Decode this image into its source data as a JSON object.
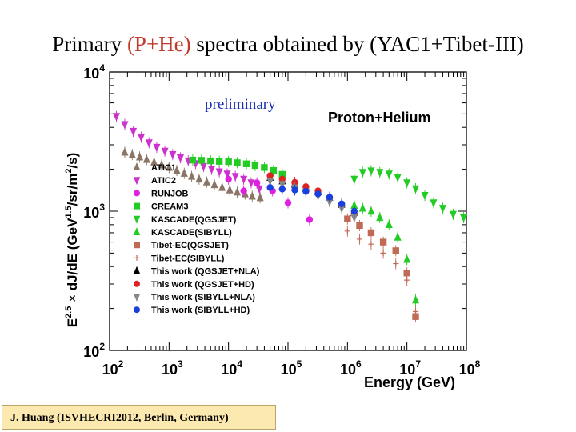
{
  "slide": {
    "title_prefix": "Primary ",
    "title_highlight": "(P+He)",
    "title_suffix": " spectra obtained by (YAC1+Tibet-III)",
    "citation": "J. Huang (ISVHECRI2012, Berlin, Germany)"
  },
  "colors": {
    "title_highlight": "#c0392b",
    "citation_bg": "#fbe9b0",
    "preliminary": "#1a2fb0"
  },
  "chart_data": {
    "type": "scatter",
    "scale": "log-log",
    "title": "Proton+Helium",
    "annotation": "preliminary",
    "xlabel": "Energy (GeV)",
    "ylabel": "E^2.5 × dJ/dE (GeV^1.5/sr/m^2/s)",
    "ylabel_parts": {
      "base": "E",
      "exp": "2.5",
      "times": " × ",
      "mid": " dJ/dE  (GeV",
      "exp2": "1.5",
      "mid2": "/sr/m",
      "exp3": "2",
      "end": "/s)"
    },
    "xlim": [
      100,
      100000000
    ],
    "ylim": [
      100,
      10000
    ],
    "x_ticks": [
      {
        "base": "10",
        "exp": "2",
        "value": 100
      },
      {
        "base": "10",
        "exp": "3",
        "value": 1000
      },
      {
        "base": "10",
        "exp": "4",
        "value": 10000
      },
      {
        "base": "10",
        "exp": "5",
        "value": 100000
      },
      {
        "base": "10",
        "exp": "6",
        "value": 1000000
      },
      {
        "base": "10",
        "exp": "7",
        "value": 10000000
      },
      {
        "base": "10",
        "exp": "8",
        "value": 100000000
      }
    ],
    "y_ticks": [
      {
        "base": "10",
        "exp": "2",
        "value": 100
      },
      {
        "base": "10",
        "exp": "3",
        "value": 1000
      },
      {
        "base": "10",
        "exp": "4",
        "value": 10000
      }
    ],
    "legend_position": "center-left",
    "series": [
      {
        "name": "ATIC1",
        "marker": "triangle-up",
        "filled": true,
        "color": "#8a7566",
        "x": [
          180,
          240,
          320,
          420,
          560,
          750,
          1000,
          1350,
          1800,
          2400,
          3200,
          4300,
          5800,
          7800,
          10500,
          14000,
          19000,
          25000,
          34000
        ],
        "y": [
          2650,
          2550,
          2450,
          2350,
          2250,
          2150,
          2060,
          1960,
          1870,
          1780,
          1700,
          1620,
          1550,
          1480,
          1420,
          1370,
          1330,
          1280,
          1250
        ]
      },
      {
        "name": "ATIC2",
        "marker": "triangle-down",
        "filled": true,
        "color": "#cc33cc",
        "x": [
          130,
          180,
          250,
          340,
          460,
          620,
          850,
          1150,
          1550,
          2100,
          2800,
          3800,
          5200,
          7000,
          9500,
          13000,
          18000,
          24000,
          33000
        ],
        "y": [
          4800,
          4200,
          3750,
          3400,
          3100,
          2880,
          2700,
          2550,
          2420,
          2300,
          2200,
          2100,
          2000,
          1920,
          1850,
          1780,
          1700,
          1600,
          1450
        ]
      },
      {
        "name": "RUNJOB",
        "marker": "circle",
        "filled": true,
        "color": "#e020e0",
        "x": [
          10000,
          18000,
          30000,
          55000,
          100000,
          230000
        ],
        "y": [
          1700,
          1400,
          1600,
          1400,
          1150,
          870
        ]
      },
      {
        "name": "CREAM3",
        "marker": "square",
        "filled": true,
        "color": "#22cc22",
        "x": [
          2500,
          3500,
          5000,
          7000,
          10000,
          14000,
          20000,
          28000,
          40000,
          57000,
          80000
        ],
        "y": [
          2330,
          2320,
          2300,
          2280,
          2270,
          2230,
          2190,
          2130,
          2060,
          1960,
          1840
        ]
      },
      {
        "name": "KASCADE(QGSJET)",
        "marker": "triangle-down",
        "filled": true,
        "color": "#22cc22",
        "x": [
          1300000,
          1800000,
          2500000,
          3500000,
          5000000,
          7000000,
          10000000,
          14000000,
          20000000,
          28000000,
          40000000,
          60000000,
          90000000
        ],
        "y": [
          1700,
          1900,
          1950,
          1900,
          1850,
          1750,
          1600,
          1450,
          1300,
          1150,
          1050,
          950,
          900
        ]
      },
      {
        "name": "KASCADE(SIBYLL)",
        "marker": "triangle-up",
        "filled": true,
        "color": "#22cc22",
        "x": [
          1300000,
          1800000,
          2500000,
          3500000,
          5000000,
          7000000,
          10000000,
          14000000
        ],
        "y": [
          1100,
          1050,
          1000,
          900,
          800,
          650,
          450,
          230
        ]
      },
      {
        "name": "Tibet-EC(QGSJET)",
        "marker": "square",
        "filled": true,
        "color": "#c06a55",
        "x": [
          1000000,
          1600000,
          2500000,
          4000000,
          6500000,
          10000000,
          14000000
        ],
        "y": [
          880,
          790,
          700,
          600,
          520,
          360,
          175
        ]
      },
      {
        "name": "Tibet-EC(SIBYLL)",
        "marker": "plus",
        "filled": false,
        "color": "#c06a55",
        "x": [
          1000000,
          1600000,
          2500000,
          4000000,
          6500000,
          10000000,
          14000000
        ],
        "y": [
          720,
          630,
          580,
          500,
          420,
          320,
          190
        ]
      },
      {
        "name": "This work (QGSJET+NLA)",
        "marker": "triangle-up",
        "filled": true,
        "color": "#000000",
        "x": [
          50000,
          80000,
          130000,
          200000,
          320000,
          500000,
          800000,
          1300000
        ],
        "y": [
          1750,
          1650,
          1560,
          1470,
          1380,
          1260,
          1120,
          980
        ]
      },
      {
        "name": "This work (QGSJET+HD)",
        "marker": "circle",
        "filled": true,
        "color": "#dd2222",
        "x": [
          50000,
          80000,
          130000,
          200000,
          320000,
          500000,
          800000,
          1300000
        ],
        "y": [
          1800,
          1700,
          1610,
          1500,
          1400,
          1260,
          1110,
          960
        ]
      },
      {
        "name": "This work (SIBYLL+NLA)",
        "marker": "triangle-down",
        "filled": true,
        "color": "#888888",
        "x": [
          50000,
          80000,
          130000,
          200000,
          320000,
          500000,
          800000,
          1300000
        ],
        "y": [
          1650,
          1560,
          1470,
          1380,
          1290,
          1170,
          1050,
          900
        ]
      },
      {
        "name": "This work (SIBYLL+HD)",
        "marker": "circle",
        "filled": true,
        "color": "#1a3fe0",
        "x": [
          50000,
          80000,
          130000,
          200000,
          320000,
          500000,
          800000,
          1300000
        ],
        "y": [
          1480,
          1440,
          1420,
          1390,
          1330,
          1260,
          1130,
          1000
        ]
      }
    ]
  }
}
